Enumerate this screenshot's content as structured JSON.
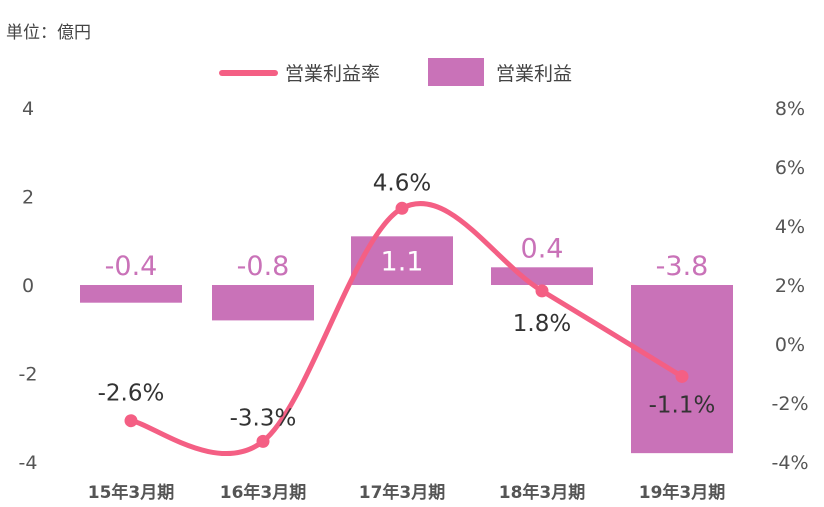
{
  "unit_label": "単位：億円",
  "chart_data": {
    "type": "bar+line",
    "categories": [
      "15年3月期",
      "16年3月期",
      "17年3月期",
      "18年3月期",
      "19年3月期"
    ],
    "series": [
      {
        "name": "営業利益",
        "type": "bar",
        "axis": "left",
        "values": [
          -0.4,
          -0.8,
          1.1,
          0.4,
          -3.8
        ],
        "labels": [
          "-0.4",
          "-0.8",
          "1.1",
          "0.4",
          "-3.8"
        ]
      },
      {
        "name": "営業利益率",
        "type": "line",
        "axis": "right",
        "values": [
          -2.6,
          -3.3,
          4.6,
          1.8,
          -1.1
        ],
        "labels": [
          "-2.6%",
          "-3.3%",
          "4.6%",
          "1.8%",
          "-1.1%"
        ]
      }
    ],
    "left_axis": {
      "ylim": [
        -4,
        4
      ],
      "ticks": [
        "4",
        "2",
        "0",
        "-2",
        "-4"
      ]
    },
    "right_axis": {
      "ylim": [
        -4,
        8
      ],
      "ticks": [
        "8%",
        "6%",
        "4%",
        "2%",
        "0%",
        "-2%",
        "-4%"
      ]
    },
    "legend": {
      "position": "top-center",
      "order": [
        "営業利益率",
        "営業利益"
      ]
    },
    "colors": {
      "bar": "#c972b8",
      "line": "#f45f84",
      "bar_label_outside": "#c972b8",
      "bar_label_inside": "#ffffff"
    },
    "grid": false
  }
}
